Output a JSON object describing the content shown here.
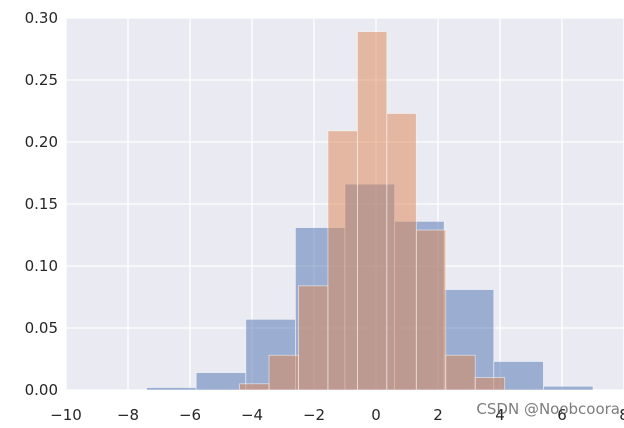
{
  "chart_data": {
    "type": "bar",
    "title": "",
    "xlabel": "",
    "ylabel": "",
    "xlim": [
      -10,
      8
    ],
    "ylim": [
      0,
      0.3
    ],
    "grid": true,
    "background": "#EAEAF2",
    "x_ticks": [
      "−10",
      "−8",
      "−6",
      "−4",
      "−2",
      "0",
      "2",
      "4",
      "6",
      "8"
    ],
    "x_tick_values": [
      -10,
      -8,
      -6,
      -4,
      -2,
      0,
      2,
      4,
      6,
      8
    ],
    "y_ticks": [
      "0.00",
      "0.05",
      "0.10",
      "0.15",
      "0.20",
      "0.25",
      "0.30"
    ],
    "y_tick_values": [
      0,
      0.05,
      0.1,
      0.15,
      0.2,
      0.25,
      0.3
    ],
    "series": [
      {
        "color": "#4C72B0",
        "opacity": 0.5,
        "bins": [
          {
            "x0": -7.4,
            "x1": -5.8,
            "value": 0.002
          },
          {
            "x0": -5.8,
            "x1": -4.2,
            "value": 0.014
          },
          {
            "x0": -4.2,
            "x1": -2.6,
            "value": 0.057
          },
          {
            "x0": -2.6,
            "x1": -1.0,
            "value": 0.131
          },
          {
            "x0": -1.0,
            "x1": 0.6,
            "value": 0.166
          },
          {
            "x0": 0.6,
            "x1": 2.2,
            "value": 0.136
          },
          {
            "x0": 2.2,
            "x1": 3.8,
            "value": 0.081
          },
          {
            "x0": 3.8,
            "x1": 5.4,
            "value": 0.023
          },
          {
            "x0": 5.4,
            "x1": 7.0,
            "value": 0.003
          }
        ]
      },
      {
        "color": "#DD8452",
        "opacity": 0.5,
        "bins": [
          {
            "x0": -4.4,
            "x1": -3.45,
            "value": 0.005
          },
          {
            "x0": -3.45,
            "x1": -2.5,
            "value": 0.028
          },
          {
            "x0": -2.5,
            "x1": -1.55,
            "value": 0.084
          },
          {
            "x0": -1.55,
            "x1": -0.6,
            "value": 0.209
          },
          {
            "x0": -0.6,
            "x1": 0.35,
            "value": 0.289
          },
          {
            "x0": 0.35,
            "x1": 1.3,
            "value": 0.223
          },
          {
            "x0": 1.3,
            "x1": 2.25,
            "value": 0.129
          },
          {
            "x0": 2.25,
            "x1": 3.2,
            "value": 0.028
          },
          {
            "x0": 3.2,
            "x1": 4.15,
            "value": 0.01
          }
        ]
      }
    ]
  },
  "watermark": "CSDN @Noobcoora"
}
